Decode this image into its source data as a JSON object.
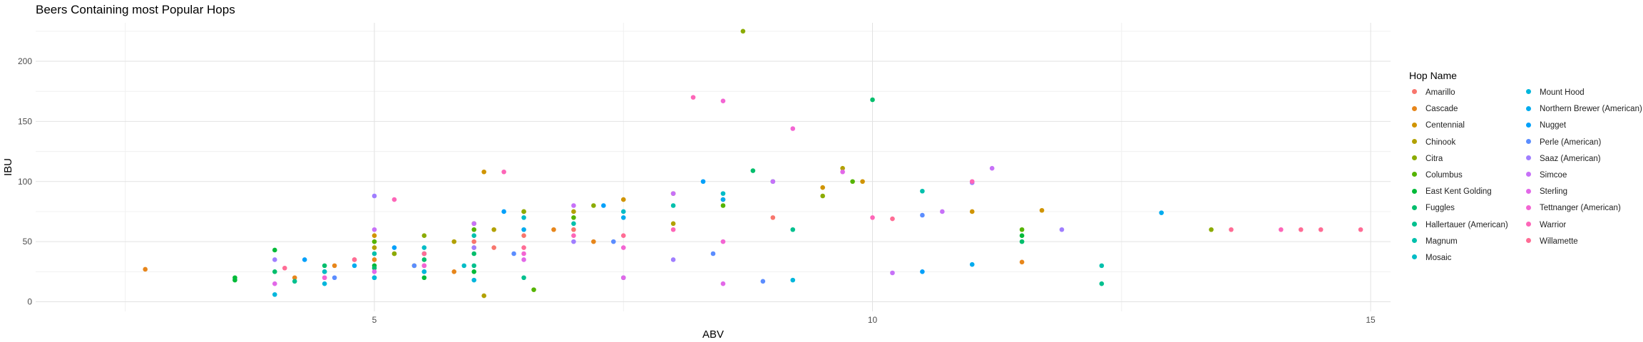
{
  "chart_data": {
    "type": "scatter",
    "title": "Beers Containing most Popular Hops",
    "xlabel": "ABV",
    "ylabel": "IBU",
    "xlim": [
      1.6,
      15.2
    ],
    "ylim": [
      -8,
      232
    ],
    "xticks": [
      5,
      10,
      15
    ],
    "yticks": [
      0,
      50,
      100,
      150,
      200
    ],
    "grid": true,
    "legend_title": "Hop Name",
    "legend_position": "right",
    "series": [
      {
        "name": "Amarillo",
        "color": "#F8766D",
        "points": [
          [
            4.8,
            35
          ],
          [
            5.2,
            40
          ],
          [
            6.0,
            50
          ],
          [
            6.5,
            55
          ],
          [
            7.0,
            60
          ],
          [
            8.5,
            85
          ],
          [
            9.0,
            70
          ],
          [
            5.5,
            30
          ],
          [
            6.2,
            45
          ]
        ]
      },
      {
        "name": "Cascade",
        "color": "#E7861B",
        "points": [
          [
            2.7,
            27
          ],
          [
            4.6,
            30
          ],
          [
            5.0,
            35
          ],
          [
            5.5,
            40
          ],
          [
            6.0,
            45
          ],
          [
            6.8,
            60
          ],
          [
            7.2,
            50
          ],
          [
            11.5,
            33
          ],
          [
            5.8,
            25
          ],
          [
            4.2,
            20
          ]
        ]
      },
      {
        "name": "Centennial",
        "color": "#D09400",
        "points": [
          [
            5.0,
            55
          ],
          [
            6.0,
            65
          ],
          [
            6.5,
            75
          ],
          [
            7.5,
            85
          ],
          [
            8.0,
            90
          ],
          [
            9.5,
            95
          ],
          [
            9.9,
            100
          ],
          [
            11.0,
            75
          ],
          [
            11.7,
            76
          ],
          [
            6.1,
            108
          ]
        ]
      },
      {
        "name": "Chinook",
        "color": "#B2A100",
        "points": [
          [
            5.0,
            45
          ],
          [
            5.8,
            50
          ],
          [
            6.2,
            60
          ],
          [
            7.0,
            75
          ],
          [
            8.0,
            65
          ],
          [
            9.7,
            111
          ],
          [
            5.4,
            30
          ],
          [
            6.1,
            5
          ]
        ]
      },
      {
        "name": "Citra",
        "color": "#8BAB00",
        "points": [
          [
            5.5,
            55
          ],
          [
            6.0,
            65
          ],
          [
            6.5,
            75
          ],
          [
            7.2,
            80
          ],
          [
            8.7,
            225
          ],
          [
            9.5,
            88
          ],
          [
            13.4,
            60
          ],
          [
            5.2,
            40
          ]
        ]
      },
      {
        "name": "Columbus",
        "color": "#55B400",
        "points": [
          [
            5.0,
            50
          ],
          [
            6.0,
            60
          ],
          [
            7.0,
            70
          ],
          [
            8.5,
            80
          ],
          [
            9.8,
            100
          ],
          [
            11.5,
            60
          ],
          [
            6.6,
            10
          ]
        ]
      },
      {
        "name": "East Kent Golding",
        "color": "#00BA38",
        "points": [
          [
            3.6,
            18
          ],
          [
            3.6,
            20
          ],
          [
            4.0,
            43
          ],
          [
            4.5,
            25
          ],
          [
            5.0,
            30
          ],
          [
            5.5,
            20
          ],
          [
            6.0,
            25
          ],
          [
            11.5,
            55
          ]
        ]
      },
      {
        "name": "Fuggles",
        "color": "#00BE6C",
        "points": [
          [
            4.0,
            25
          ],
          [
            4.5,
            30
          ],
          [
            5.0,
            28
          ],
          [
            5.5,
            35
          ],
          [
            6.0,
            40
          ],
          [
            8.8,
            109
          ],
          [
            10.0,
            168
          ],
          [
            11.5,
            50
          ]
        ]
      },
      {
        "name": "Hallertauer (American)",
        "color": "#00C08E",
        "points": [
          [
            4.2,
            17
          ],
          [
            5.0,
            20
          ],
          [
            5.5,
            25
          ],
          [
            6.0,
            30
          ],
          [
            6.5,
            20
          ],
          [
            9.2,
            60
          ],
          [
            12.3,
            15
          ]
        ]
      },
      {
        "name": "Magnum",
        "color": "#00C0AC",
        "points": [
          [
            5.0,
            40
          ],
          [
            6.0,
            55
          ],
          [
            7.0,
            65
          ],
          [
            8.0,
            80
          ],
          [
            9.0,
            100
          ],
          [
            10.5,
            92
          ],
          [
            12.3,
            30
          ]
        ]
      },
      {
        "name": "Mosaic",
        "color": "#00BCC6",
        "points": [
          [
            4.5,
            25
          ],
          [
            5.5,
            45
          ],
          [
            6.5,
            70
          ],
          [
            7.5,
            75
          ],
          [
            8.5,
            90
          ],
          [
            5.9,
            30
          ]
        ]
      },
      {
        "name": "Mount Hood",
        "color": "#00B6DC",
        "points": [
          [
            4.0,
            6
          ],
          [
            4.5,
            15
          ],
          [
            5.0,
            20
          ],
          [
            5.5,
            25
          ],
          [
            6.0,
            18
          ],
          [
            7.5,
            20
          ],
          [
            9.2,
            18
          ]
        ]
      },
      {
        "name": "Northern Brewer (American)",
        "color": "#00ABEE",
        "points": [
          [
            4.8,
            30
          ],
          [
            5.5,
            40
          ],
          [
            6.5,
            60
          ],
          [
            7.5,
            70
          ],
          [
            8.5,
            85
          ],
          [
            12.9,
            74
          ],
          [
            11.0,
            31
          ]
        ]
      },
      {
        "name": "Nugget",
        "color": "#00A0FA",
        "points": [
          [
            4.3,
            35
          ],
          [
            5.2,
            45
          ],
          [
            6.3,
            75
          ],
          [
            7.3,
            80
          ],
          [
            8.3,
            100
          ],
          [
            10.5,
            25
          ]
        ]
      },
      {
        "name": "Perle (American)",
        "color": "#5B8DFF",
        "points": [
          [
            4.6,
            20
          ],
          [
            5.4,
            30
          ],
          [
            6.4,
            40
          ],
          [
            7.4,
            50
          ],
          [
            8.4,
            40
          ],
          [
            8.9,
            17
          ],
          [
            10.5,
            72
          ]
        ]
      },
      {
        "name": "Saaz (American)",
        "color": "#A07EFF",
        "points": [
          [
            4.0,
            35
          ],
          [
            5.0,
            88
          ],
          [
            6.0,
            45
          ],
          [
            7.0,
            50
          ],
          [
            8.0,
            35
          ],
          [
            11.0,
            99
          ],
          [
            11.9,
            60
          ]
        ]
      },
      {
        "name": "Simcoe",
        "color": "#C771F8",
        "points": [
          [
            5.0,
            60
          ],
          [
            6.0,
            65
          ],
          [
            7.0,
            80
          ],
          [
            8.0,
            90
          ],
          [
            9.0,
            100
          ],
          [
            10.7,
            75
          ],
          [
            11.2,
            111
          ],
          [
            10.2,
            24
          ]
        ]
      },
      {
        "name": "Sterling",
        "color": "#E268E8",
        "points": [
          [
            4.0,
            15
          ],
          [
            4.5,
            20
          ],
          [
            5.0,
            25
          ],
          [
            5.5,
            30
          ],
          [
            6.5,
            35
          ],
          [
            7.5,
            20
          ],
          [
            8.5,
            15
          ],
          [
            9.7,
            108
          ]
        ]
      },
      {
        "name": "Tettnanger (American)",
        "color": "#F365D3",
        "points": [
          [
            4.5,
            20
          ],
          [
            5.5,
            30
          ],
          [
            6.5,
            40
          ],
          [
            7.5,
            45
          ],
          [
            8.5,
            50
          ],
          [
            8.5,
            167
          ],
          [
            9.2,
            144
          ]
        ]
      },
      {
        "name": "Warrior",
        "color": "#FD66B8",
        "points": [
          [
            5.2,
            85
          ],
          [
            6.3,
            108
          ],
          [
            7.0,
            55
          ],
          [
            8.0,
            60
          ],
          [
            8.2,
            170
          ],
          [
            10.0,
            70
          ],
          [
            11.0,
            100
          ],
          [
            14.1,
            60
          ]
        ]
      },
      {
        "name": "Willamette",
        "color": "#FF6C95",
        "points": [
          [
            4.1,
            28
          ],
          [
            4.8,
            35
          ],
          [
            5.5,
            40
          ],
          [
            6.5,
            45
          ],
          [
            7.5,
            55
          ],
          [
            10.2,
            69
          ],
          [
            13.6,
            60
          ],
          [
            14.3,
            60
          ],
          [
            14.5,
            60
          ],
          [
            14.9,
            60
          ]
        ]
      }
    ]
  }
}
